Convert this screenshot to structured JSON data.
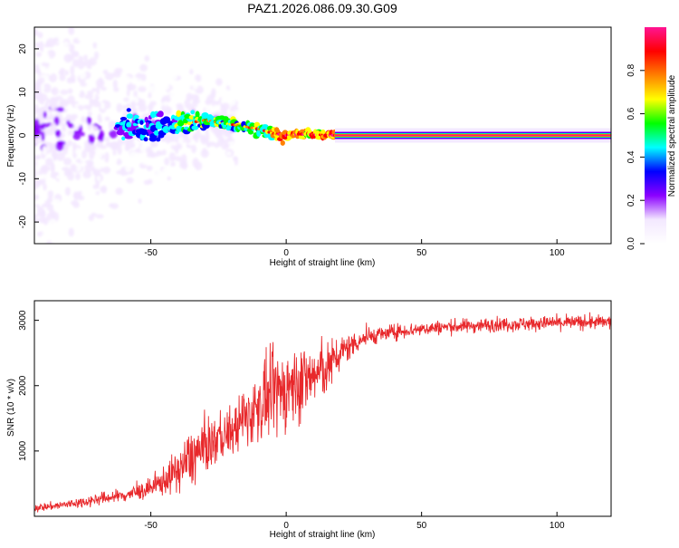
{
  "figure_title": "PAZ1.2026.086.09.30.G09",
  "chart_data": [
    {
      "type": "heatmap",
      "title": "PAZ1.2026.086.09.30.G09",
      "xlabel": "Height of straight line (km)",
      "ylabel": "Frequency (Hz)",
      "xlim": [
        -93,
        120
      ],
      "ylim": [
        -25,
        25
      ],
      "xticks": [
        -50,
        0,
        50,
        100
      ],
      "yticks": [
        -20,
        -10,
        0,
        10,
        20
      ],
      "xtick_labels": [
        "-50",
        "0",
        "50",
        "100"
      ],
      "ytick_labels": [
        "-20",
        "-10",
        "0",
        "10",
        "20"
      ],
      "colorbar": {
        "label": "Normalized spectral amplitude",
        "range": [
          0,
          1
        ],
        "ticks": [
          "0.0",
          "0.2",
          "0.4",
          "0.6",
          "0.8"
        ],
        "colormap": [
          "#ffffff",
          "#f3e8ff",
          "#8b00ff",
          "#0000ff",
          "#00ffff",
          "#00ff00",
          "#ffff00",
          "#ff8000",
          "#ff0000",
          "#ff1493"
        ]
      },
      "ridge": {
        "description_points_x": [
          -60,
          -45,
          -35,
          -30,
          -20,
          -10,
          -5,
          0,
          5,
          10,
          20,
          30,
          60,
          120
        ],
        "frequency_hz": [
          1.5,
          2.5,
          3.0,
          3.5,
          2.5,
          1.5,
          0.5,
          0.0,
          0.3,
          0.2,
          0.0,
          0.0,
          0.0,
          0.0
        ]
      }
    },
    {
      "type": "line",
      "xlabel": "Height of straight line (km)",
      "ylabel": "SNR (10 * v/v)",
      "xlim": [
        -93,
        120
      ],
      "ylim": [
        0,
        3300
      ],
      "xticks": [
        -50,
        0,
        50,
        100
      ],
      "yticks": [
        1000,
        2000,
        3000
      ],
      "xtick_labels": [
        "-50",
        "0",
        "50",
        "100"
      ],
      "ytick_labels": [
        "1000",
        "2000",
        "3000"
      ],
      "line_color": "#e8282b",
      "series": [
        {
          "name": "SNR",
          "x": [
            -93,
            -85,
            -80,
            -75,
            -70,
            -60,
            -50,
            -45,
            -40,
            -35,
            -30,
            -25,
            -20,
            -15,
            -10,
            -5,
            0,
            5,
            10,
            15,
            20,
            25,
            30,
            40,
            50,
            60,
            70,
            80,
            90,
            100,
            110,
            120
          ],
          "mean": [
            130,
            160,
            190,
            220,
            260,
            320,
            420,
            550,
            700,
            900,
            1050,
            1200,
            1300,
            1500,
            1700,
            1850,
            1950,
            2050,
            2150,
            2250,
            2500,
            2650,
            2750,
            2820,
            2870,
            2900,
            2920,
            2940,
            2950,
            2960,
            2970,
            2970
          ],
          "spread": [
            70,
            70,
            80,
            90,
            100,
            120,
            160,
            250,
            350,
            500,
            450,
            400,
            420,
            500,
            600,
            700,
            700,
            650,
            550,
            450,
            300,
            200,
            150,
            130,
            120,
            120,
            120,
            120,
            120,
            120,
            120,
            120
          ]
        }
      ]
    }
  ]
}
